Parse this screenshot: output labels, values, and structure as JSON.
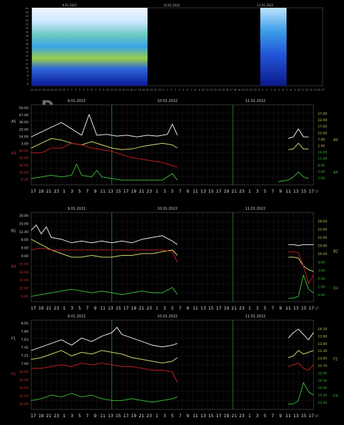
{
  "spectrogram": {
    "y_ticks": [
      "Hz",
      "24",
      "23",
      "22",
      "21",
      "20",
      "19",
      "18",
      "17",
      "16",
      "15",
      "14",
      "13",
      "12",
      "11",
      "10",
      "9",
      "8",
      "7",
      "6"
    ],
    "date_labels": [
      "9.01.2022",
      "10.01.2022",
      "11.01.2022"
    ],
    "x_ticks": [
      "15",
      "16",
      "17",
      "18",
      "19",
      "20",
      "21",
      "22",
      "23",
      "0",
      "1",
      "2",
      "3",
      "4",
      "5",
      "6",
      "7",
      "8",
      "9",
      "10",
      "11",
      "12",
      "13",
      "14",
      "15",
      "16",
      "17",
      "18",
      "19",
      "20",
      "21",
      "22",
      "23",
      "0",
      "1",
      "2",
      "3",
      "4",
      "5",
      "6",
      "7",
      "8",
      "9",
      "10",
      "11",
      "12",
      "13",
      "14",
      "15",
      "16",
      "17",
      "18",
      "19",
      "20",
      "21",
      "22",
      "23",
      "0",
      "1",
      "2",
      "3",
      "4",
      "5",
      "6",
      "7",
      "8",
      "9",
      "10",
      "11",
      "12",
      "13",
      "14",
      "15",
      "UT"
    ]
  },
  "logo": "D",
  "colors": {
    "white": "#e8e8e8",
    "yellow": "#cfd46a",
    "red": "#b81e1e",
    "green": "#34b234",
    "grid": "#3d3d3d",
    "vline": "#2f8f3a",
    "left_red_label": "#c23a3a",
    "right_yellow_label": "#d2c95a",
    "right_green_label": "#3bbd3b"
  },
  "chart_data": [
    {
      "type": "line",
      "title": "",
      "date_labels": [
        "9.01.2022",
        "10.01.2022",
        "11.01.2022"
      ],
      "left_labels": [
        "50.00",
        "47.00",
        "36.00",
        "25.00",
        "14.00",
        "3.00",
        "60.00",
        "45.00",
        "30.00",
        "15.00",
        "0.00"
      ],
      "left_axis_names": [
        "A1",
        "A3"
      ],
      "right_labels": [
        "27.00",
        "22.00",
        "17.00",
        "12.00",
        "7.00",
        "2.00",
        "14.00",
        "11.00",
        "8.00",
        "5.00",
        "2.00"
      ],
      "right_axis_names": [
        "A2",
        "A4"
      ],
      "x_ticks": [
        "17",
        "19",
        "21",
        "23",
        "1",
        "3",
        "5",
        "7",
        "9",
        "11",
        "13",
        "15",
        "17",
        "19",
        "21",
        "23",
        "1",
        "3",
        "5",
        "7",
        "9",
        "11",
        "13",
        "15",
        "17",
        "19",
        "21",
        "23",
        "1",
        "3",
        "5",
        "7",
        "9",
        "11",
        "13",
        "15",
        "17"
      ],
      "x_unit": "UT",
      "series": [
        {
          "color": "white",
          "segments": [
            {
              "x": [
                0,
                2,
                4,
                6,
                8,
                10,
                11.5,
                13,
                15,
                17,
                19,
                21,
                23,
                25,
                27,
                28,
                29
              ],
              "y": [
                0.6,
                0.66,
                0.72,
                0.78,
                0.7,
                0.62,
                0.88,
                0.62,
                0.63,
                0.61,
                0.62,
                0.6,
                0.62,
                0.61,
                0.63,
                0.76,
                0.62
              ]
            },
            {
              "x": [
                51,
                52,
                53,
                54,
                55
              ],
              "y": [
                0.58,
                0.6,
                0.7,
                0.6,
                0.6
              ]
            }
          ]
        },
        {
          "color": "yellow",
          "segments": [
            {
              "x": [
                0,
                2,
                4,
                6,
                8,
                10,
                12,
                14,
                16,
                18,
                20,
                22,
                24,
                26,
                28,
                29
              ],
              "y": [
                0.46,
                0.52,
                0.58,
                0.56,
                0.52,
                0.5,
                0.54,
                0.5,
                0.46,
                0.44,
                0.45,
                0.48,
                0.5,
                0.52,
                0.5,
                0.46
              ]
            },
            {
              "x": [
                51,
                52,
                53,
                54,
                55
              ],
              "y": [
                0.44,
                0.45,
                0.52,
                0.45,
                0.45
              ]
            }
          ]
        },
        {
          "color": "red",
          "segments": [
            {
              "x": [
                0,
                2,
                4,
                6,
                8,
                10,
                12,
                14,
                16,
                18,
                20,
                22,
                24,
                26,
                28,
                29
              ],
              "y": [
                0.4,
                0.4,
                0.46,
                0.46,
                0.52,
                0.5,
                0.46,
                0.44,
                0.42,
                0.38,
                0.34,
                0.32,
                0.3,
                0.28,
                0.24,
                0.22
              ]
            }
          ]
        },
        {
          "color": "green",
          "segments": [
            {
              "x": [
                0,
                2,
                4,
                6,
                8,
                9,
                10,
                12,
                13,
                14,
                16,
                18,
                20,
                22,
                24,
                26,
                28,
                29
              ],
              "y": [
                0.08,
                0.1,
                0.12,
                0.1,
                0.12,
                0.26,
                0.12,
                0.1,
                0.18,
                0.1,
                0.08,
                0.06,
                0.06,
                0.06,
                0.06,
                0.06,
                0.14,
                0.06
              ]
            },
            {
              "x": [
                49,
                51,
                52,
                53,
                54,
                55
              ],
              "y": [
                0.04,
                0.06,
                0.1,
                0.16,
                0.1,
                0.08
              ]
            }
          ]
        }
      ]
    },
    {
      "type": "line",
      "title": "",
      "date_labels": [
        "9.01.2022",
        "10.01.2022",
        "11.01.2022"
      ],
      "left_labels": [
        "16.00",
        "15.00",
        "12.40",
        "8.00",
        "4.00",
        "0.00",
        "21.00",
        "18.00",
        "15.00",
        "12.00",
        "9.00"
      ],
      "left_axis_names": [
        "B1",
        "B3"
      ],
      "right_labels": [
        "28.00",
        "25.00",
        "22.00",
        "19.00",
        "16.00",
        "4.00",
        "3.00",
        "2.00",
        "1.00",
        "0.00"
      ],
      "right_axis_names": [
        "B2",
        "B4"
      ],
      "x_ticks": [
        "17",
        "19",
        "21",
        "23",
        "1",
        "3",
        "5",
        "7",
        "9",
        "11",
        "13",
        "15",
        "17",
        "19",
        "21",
        "23",
        "1",
        "3",
        "5",
        "7",
        "9",
        "11",
        "13",
        "15",
        "17",
        "19",
        "21",
        "23",
        "1",
        "3",
        "5",
        "7",
        "9",
        "11",
        "13",
        "15",
        "17"
      ],
      "x_unit": "UT",
      "series": [
        {
          "color": "white",
          "segments": [
            {
              "x": [
                0,
                1,
                2,
                3,
                4,
                6,
                8,
                10,
                12,
                14,
                16,
                18,
                20,
                22,
                24,
                26,
                28,
                29
              ],
              "y": [
                0.8,
                0.86,
                0.76,
                0.84,
                0.72,
                0.7,
                0.66,
                0.68,
                0.66,
                0.68,
                0.66,
                0.68,
                0.66,
                0.7,
                0.72,
                0.74,
                0.68,
                0.64
              ]
            },
            {
              "x": [
                51,
                52,
                53,
                54,
                55,
                56
              ],
              "y": [
                0.64,
                0.64,
                0.63,
                0.64,
                0.64,
                0.64
              ]
            }
          ]
        },
        {
          "color": "yellow",
          "segments": [
            {
              "x": [
                0,
                2,
                4,
                6,
                8,
                10,
                12,
                14,
                16,
                18,
                20,
                22,
                24,
                26,
                28,
                29
              ],
              "y": [
                0.7,
                0.64,
                0.58,
                0.54,
                0.5,
                0.5,
                0.52,
                0.5,
                0.5,
                0.52,
                0.52,
                0.54,
                0.54,
                0.56,
                0.58,
                0.52
              ]
            },
            {
              "x": [
                51,
                52,
                53,
                54,
                55,
                56
              ],
              "y": [
                0.5,
                0.5,
                0.49,
                0.4,
                0.36,
                0.34
              ]
            }
          ]
        },
        {
          "color": "red",
          "segments": [
            {
              "x": [
                0,
                2,
                4,
                6,
                8,
                10,
                12,
                14,
                16,
                18,
                20,
                22,
                24,
                26,
                28,
                29
              ],
              "y": [
                0.58,
                0.6,
                0.58,
                0.58,
                0.58,
                0.58,
                0.58,
                0.58,
                0.58,
                0.58,
                0.58,
                0.58,
                0.58,
                0.58,
                0.56,
                0.44
              ]
            },
            {
              "x": [
                51,
                52,
                53,
                54,
                55,
                56
              ],
              "y": [
                0.56,
                0.56,
                0.55,
                0.4,
                0.2,
                0.3
              ]
            }
          ]
        },
        {
          "color": "green",
          "segments": [
            {
              "x": [
                0,
                2,
                4,
                6,
                8,
                10,
                12,
                14,
                16,
                18,
                20,
                22,
                24,
                26,
                28,
                29
              ],
              "y": [
                0.06,
                0.08,
                0.1,
                0.12,
                0.14,
                0.12,
                0.1,
                0.12,
                0.1,
                0.08,
                0.1,
                0.12,
                0.1,
                0.1,
                0.16,
                0.08
              ]
            },
            {
              "x": [
                51,
                52,
                53,
                54,
                55,
                56
              ],
              "y": [
                0.04,
                0.04,
                0.06,
                0.3,
                0.14,
                0.1
              ]
            }
          ]
        }
      ]
    },
    {
      "type": "line",
      "title": "",
      "date_labels": [
        "9.01.2022",
        "10.01.2022",
        "11.01.2022"
      ],
      "left_labels": [
        "8.05",
        "7.84",
        "7.63",
        "7.42",
        "7.21",
        "7.00",
        "18.00",
        "16.00",
        "14.00",
        "12.00",
        "10.00"
      ],
      "left_axis_names": [
        "F1",
        "F3"
      ],
      "right_labels": [
        "14.20",
        "13.90",
        "13.60",
        "13.30",
        "13.00",
        "12.70",
        "25.00",
        "24.50",
        "24.00",
        "23.50",
        "23.00"
      ],
      "right_axis_names": [
        "F2",
        "F4"
      ],
      "x_ticks": [
        "17",
        "19",
        "21",
        "23",
        "1",
        "3",
        "5",
        "7",
        "9",
        "11",
        "13",
        "15",
        "17",
        "19",
        "21",
        "23",
        "1",
        "3",
        "5",
        "7",
        "9",
        "11",
        "13",
        "15",
        "17",
        "19",
        "21",
        "23",
        "1",
        "3",
        "5",
        "7",
        "9",
        "11",
        "13",
        "15",
        "17"
      ],
      "x_unit": "UT",
      "series": [
        {
          "color": "white",
          "segments": [
            {
              "x": [
                0,
                2,
                4,
                6,
                8,
                10,
                12,
                14,
                16,
                17,
                18,
                20,
                22,
                24,
                26,
                28,
                29
              ],
              "y": [
                0.66,
                0.7,
                0.74,
                0.78,
                0.72,
                0.8,
                0.76,
                0.82,
                0.86,
                0.92,
                0.84,
                0.8,
                0.76,
                0.72,
                0.7,
                0.72,
                0.74
              ]
            },
            {
              "x": [
                51,
                52,
                53,
                54,
                55,
                56
              ],
              "y": [
                0.8,
                0.86,
                0.9,
                0.84,
                0.78,
                0.86
              ]
            }
          ]
        },
        {
          "color": "yellow",
          "segments": [
            {
              "x": [
                0,
                2,
                4,
                6,
                8,
                10,
                12,
                14,
                16,
                18,
                20,
                22,
                24,
                26,
                28,
                29
              ],
              "y": [
                0.56,
                0.58,
                0.62,
                0.66,
                0.6,
                0.64,
                0.62,
                0.66,
                0.64,
                0.62,
                0.58,
                0.56,
                0.54,
                0.52,
                0.54,
                0.58
              ]
            },
            {
              "x": [
                51,
                52,
                53,
                54,
                55,
                56
              ],
              "y": [
                0.58,
                0.6,
                0.66,
                0.62,
                0.64,
                0.66
              ]
            }
          ]
        },
        {
          "color": "red",
          "segments": [
            {
              "x": [
                0,
                2,
                4,
                6,
                8,
                10,
                12,
                14,
                16,
                18,
                20,
                22,
                24,
                26,
                28,
                29
              ],
              "y": [
                0.46,
                0.46,
                0.48,
                0.5,
                0.48,
                0.52,
                0.5,
                0.52,
                0.5,
                0.48,
                0.48,
                0.46,
                0.44,
                0.44,
                0.42,
                0.3
              ]
            },
            {
              "x": [
                51,
                52,
                53,
                54,
                55,
                56
              ],
              "y": [
                0.48,
                0.5,
                0.52,
                0.46,
                0.44,
                0.5
              ]
            }
          ]
        },
        {
          "color": "green",
          "segments": [
            {
              "x": [
                0,
                2,
                4,
                6,
                8,
                10,
                12,
                14,
                16,
                18,
                20,
                22,
                24,
                26,
                28,
                29
              ],
              "y": [
                0.1,
                0.12,
                0.16,
                0.14,
                0.18,
                0.14,
                0.16,
                0.12,
                0.1,
                0.1,
                0.12,
                0.1,
                0.08,
                0.1,
                0.12,
                0.14
              ]
            },
            {
              "x": [
                51,
                52,
                53,
                54,
                55,
                56
              ],
              "y": [
                0.06,
                0.06,
                0.1,
                0.3,
                0.2,
                0.16
              ]
            }
          ]
        }
      ]
    }
  ]
}
